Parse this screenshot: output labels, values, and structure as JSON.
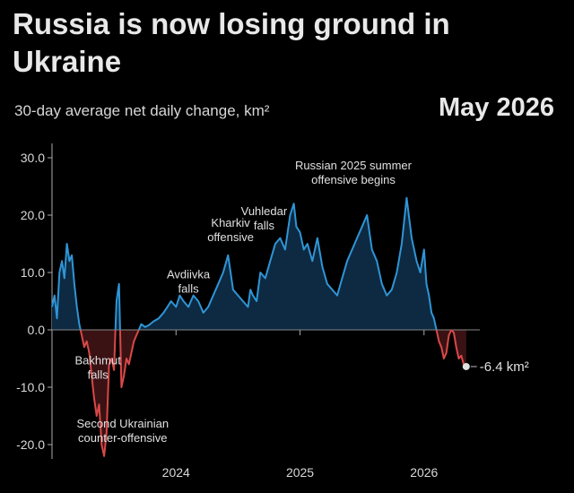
{
  "header": {
    "title": "Russia is now losing ground in Ukraine",
    "subtitle": "30-day average net daily change, km²",
    "date": "May 2026"
  },
  "colors": {
    "gain": "#2f95d6",
    "gain_fill": "#0d2a42",
    "loss": "#d94848",
    "loss_fill": "#3a1214",
    "zero": "#888888"
  },
  "end_label": "-6.4 km²",
  "chart_data": {
    "type": "area",
    "title": "Russia is now losing ground in Ukraine",
    "subtitle": "30-day average net daily change, km²",
    "xlabel": "",
    "ylabel": "",
    "xlim": [
      2023.0,
      2026.45
    ],
    "ylim": [
      -22.5,
      32.5
    ],
    "grid": false,
    "x_ticks": [
      2024,
      2025,
      2026
    ],
    "x_tick_labels": [
      "2024",
      "2025",
      "2026"
    ],
    "y_ticks": [
      30,
      20,
      10,
      0,
      -10,
      -20
    ],
    "y_tick_labels": [
      "30.0",
      "20.0",
      "10.0",
      "0.0",
      "-10.0",
      "-20.0"
    ],
    "series": [
      {
        "x": [
          2023.0,
          2023.02,
          2023.04,
          2023.06,
          2023.08,
          2023.1,
          2023.12,
          2023.14,
          2023.16,
          2023.18,
          2023.2,
          2023.22,
          2023.24,
          2023.26,
          2023.28,
          2023.3,
          2023.32,
          2023.34,
          2023.36,
          2023.38,
          2023.4,
          2023.42,
          2023.44,
          2023.46,
          2023.48,
          2023.5,
          2023.52,
          2023.54,
          2023.56,
          2023.58,
          2023.6,
          2023.62,
          2023.64,
          2023.66,
          2023.68,
          2023.7,
          2023.72,
          2023.75,
          2023.78,
          2023.82,
          2023.86,
          2023.9,
          2023.93,
          2023.96,
          2024.0,
          2024.03,
          2024.06,
          2024.1,
          2024.14,
          2024.18,
          2024.22,
          2024.26,
          2024.3,
          2024.34,
          2024.38,
          2024.42,
          2024.46,
          2024.5,
          2024.54,
          2024.58,
          2024.6,
          2024.62,
          2024.65,
          2024.68,
          2024.72,
          2024.76,
          2024.8,
          2024.84,
          2024.88,
          2024.92,
          2024.95,
          2024.97,
          2025.0,
          2025.03,
          2025.06,
          2025.1,
          2025.14,
          2025.18,
          2025.22,
          2025.26,
          2025.3,
          2025.34,
          2025.38,
          2025.42,
          2025.46,
          2025.5,
          2025.54,
          2025.58,
          2025.62,
          2025.66,
          2025.7,
          2025.74,
          2025.78,
          2025.82,
          2025.86,
          2025.9,
          2025.94,
          2025.97,
          2026.0,
          2026.02,
          2026.04,
          2026.06,
          2026.08,
          2026.1,
          2026.12,
          2026.14,
          2026.16,
          2026.18,
          2026.2,
          2026.22,
          2026.24,
          2026.26,
          2026.28,
          2026.3,
          2026.32,
          2026.34
        ],
        "y": [
          4,
          6,
          2,
          10,
          12,
          9,
          15,
          12,
          13,
          8,
          4,
          1,
          -1,
          -3,
          -2,
          -4,
          -8,
          -12,
          -15,
          -13,
          -20,
          -22,
          -18,
          -6,
          -5,
          -7,
          5,
          8,
          -10,
          -8,
          -5,
          -6,
          -4,
          -2,
          -1,
          0,
          1,
          0.5,
          0.8,
          1.5,
          2,
          3,
          4,
          5,
          4,
          6,
          5,
          4,
          6,
          5,
          3,
          4,
          6,
          8,
          10,
          13,
          7,
          6,
          5,
          4,
          7,
          6,
          5,
          10,
          9,
          12,
          15,
          16,
          14,
          20,
          22,
          18,
          17,
          14,
          15,
          12,
          16,
          11,
          8,
          7,
          6,
          9,
          12,
          14,
          16,
          18,
          20,
          14,
          12,
          8,
          6,
          7,
          10,
          15,
          23,
          16,
          12,
          10,
          14,
          8,
          6,
          3,
          2,
          0,
          -2,
          -3,
          -5,
          -4,
          -1,
          0,
          -0.5,
          -3,
          -5,
          -4.5,
          -6,
          -6.4
        ]
      }
    ],
    "annotations": [
      {
        "lines": [
          "Bakhmut",
          "falls"
        ],
        "x": 2023.37,
        "y": -6
      },
      {
        "lines": [
          "Second Ukrainian",
          "counter-offensive"
        ],
        "x": 2023.57,
        "y": -17
      },
      {
        "lines": [
          "Avdiivka",
          "falls"
        ],
        "x": 2024.1,
        "y": 9
      },
      {
        "lines": [
          "Kharkiv",
          "offensive"
        ],
        "x": 2024.44,
        "y": 18
      },
      {
        "lines": [
          "Vuhledar",
          "falls"
        ],
        "x": 2024.71,
        "y": 20
      },
      {
        "lines": [
          "Russian 2025 summer",
          "offensive begins"
        ],
        "x": 2025.43,
        "y": 28
      }
    ]
  }
}
